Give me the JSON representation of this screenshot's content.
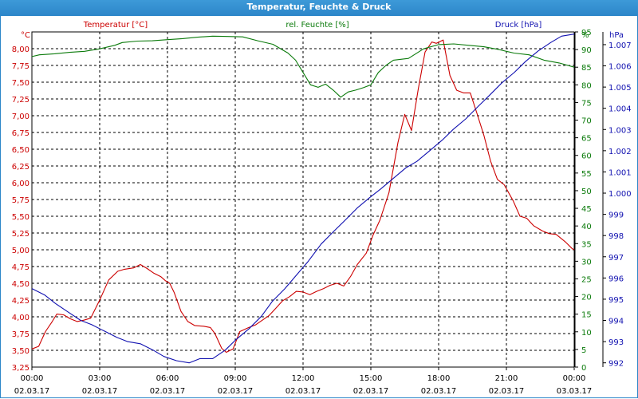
{
  "window": {
    "title": "Temperatur, Feuchte & Druck"
  },
  "colors": {
    "temperature": "#cc0000",
    "humidity": "#0a7a0a",
    "pressure": "#1010b0",
    "grid": "#000000",
    "title_bar": "#2c86c9"
  },
  "chart_data": {
    "type": "line",
    "title": "Temperatur, Feuchte & Druck",
    "grid": true,
    "x": [
      "00:00",
      "03:00",
      "06:00",
      "09:00",
      "12:00",
      "15:00",
      "18:00",
      "21:00",
      "00:00"
    ],
    "x_dates": [
      "02.03.17",
      "02.03.17",
      "02.03.17",
      "02.03.17",
      "02.03.17",
      "02.03.17",
      "02.03.17",
      "02.03.17",
      "03.03.17"
    ],
    "x_hours_range": [
      0,
      24
    ],
    "axes": {
      "left": {
        "unit": "°C",
        "label": "Temperatur [°C]",
        "range": [
          3.25,
          8.25
        ],
        "ticks": [
          "3,25",
          "3,50",
          "3,75",
          "4,00",
          "4,25",
          "4,50",
          "4,75",
          "5,00",
          "5,25",
          "5,50",
          "5,75",
          "6,00",
          "6,25",
          "6,50",
          "6,75",
          "7,00",
          "7,25",
          "7,50",
          "7,75",
          "8,00"
        ]
      },
      "middle": {
        "unit": "%",
        "label": "rel. Feuchte [%]",
        "range": [
          0,
          95
        ],
        "ticks": [
          "0",
          "5",
          "10",
          "15",
          "20",
          "25",
          "30",
          "35",
          "40",
          "45",
          "50",
          "55",
          "60",
          "65",
          "70",
          "75",
          "80",
          "85",
          "90",
          "95",
          "%"
        ]
      },
      "right": {
        "unit": "hPa",
        "label": "Druck [hPa]",
        "range": [
          991.8,
          1007.6
        ],
        "ticks": [
          "992",
          "993",
          "994",
          "995",
          "996",
          "997",
          "998",
          "999",
          "1.000",
          "1.001",
          "1.002",
          "1.003",
          "1.004",
          "1.005",
          "1.006",
          "1.007"
        ]
      }
    },
    "series": [
      {
        "name": "Temperatur [°C]",
        "axis": "left",
        "points": [
          [
            0,
            3.52
          ],
          [
            0.3,
            3.56
          ],
          [
            0.6,
            3.78
          ],
          [
            0.9,
            3.93
          ],
          [
            1.1,
            4.04
          ],
          [
            1.4,
            4.03
          ],
          [
            1.7,
            3.97
          ],
          [
            2.0,
            3.93
          ],
          [
            2.3,
            3.95
          ],
          [
            2.6,
            3.98
          ],
          [
            3.0,
            4.25
          ],
          [
            3.4,
            4.55
          ],
          [
            3.8,
            4.68
          ],
          [
            4.1,
            4.71
          ],
          [
            4.5,
            4.73
          ],
          [
            4.8,
            4.78
          ],
          [
            5.1,
            4.72
          ],
          [
            5.4,
            4.65
          ],
          [
            5.7,
            4.6
          ],
          [
            5.9,
            4.54
          ],
          [
            6.1,
            4.5
          ],
          [
            6.3,
            4.36
          ],
          [
            6.6,
            4.08
          ],
          [
            6.9,
            3.93
          ],
          [
            7.2,
            3.87
          ],
          [
            7.6,
            3.86
          ],
          [
            7.9,
            3.84
          ],
          [
            8.1,
            3.75
          ],
          [
            8.4,
            3.53
          ],
          [
            8.6,
            3.47
          ],
          [
            8.9,
            3.52
          ],
          [
            9.2,
            3.78
          ],
          [
            9.6,
            3.84
          ],
          [
            9.9,
            3.88
          ],
          [
            10.2,
            3.95
          ],
          [
            10.5,
            4.02
          ],
          [
            10.8,
            4.13
          ],
          [
            11.1,
            4.24
          ],
          [
            11.4,
            4.3
          ],
          [
            11.7,
            4.38
          ],
          [
            12.0,
            4.37
          ],
          [
            12.3,
            4.33
          ],
          [
            12.6,
            4.38
          ],
          [
            12.9,
            4.42
          ],
          [
            13.2,
            4.47
          ],
          [
            13.5,
            4.5
          ],
          [
            13.8,
            4.46
          ],
          [
            14.1,
            4.6
          ],
          [
            14.4,
            4.78
          ],
          [
            14.8,
            4.95
          ],
          [
            15.1,
            5.22
          ],
          [
            15.4,
            5.44
          ],
          [
            15.8,
            5.85
          ],
          [
            16.2,
            6.6
          ],
          [
            16.5,
            7.02
          ],
          [
            16.8,
            6.78
          ],
          [
            17.1,
            7.4
          ],
          [
            17.4,
            7.95
          ],
          [
            17.7,
            8.1
          ],
          [
            17.9,
            8.08
          ],
          [
            18.2,
            8.13
          ],
          [
            18.5,
            7.6
          ],
          [
            18.8,
            7.38
          ],
          [
            19.1,
            7.34
          ],
          [
            19.4,
            7.34
          ],
          [
            19.7,
            7.03
          ],
          [
            20.0,
            6.71
          ],
          [
            20.3,
            6.32
          ],
          [
            20.6,
            6.05
          ],
          [
            20.9,
            5.97
          ],
          [
            21.3,
            5.73
          ],
          [
            21.6,
            5.5
          ],
          [
            21.9,
            5.47
          ],
          [
            22.2,
            5.36
          ],
          [
            22.6,
            5.28
          ],
          [
            22.9,
            5.24
          ],
          [
            23.2,
            5.23
          ],
          [
            23.6,
            5.12
          ],
          [
            23.9,
            5.02
          ],
          [
            24.0,
            5.0
          ]
        ]
      },
      {
        "name": "rel. Feuchte [%]",
        "axis": "middle",
        "points": [
          [
            0,
            88.0
          ],
          [
            0.5,
            88.5
          ],
          [
            1.5,
            88.8
          ],
          [
            2.5,
            89.2
          ],
          [
            3.5,
            89.5
          ],
          [
            4.5,
            90.2
          ],
          [
            5.5,
            91.2
          ],
          [
            6.0,
            92.0
          ],
          [
            7.0,
            92.4
          ],
          [
            8.0,
            92.5
          ],
          [
            9.0,
            92.8
          ],
          [
            10.0,
            93.1
          ],
          [
            11.0,
            93.5
          ],
          [
            12.0,
            93.8
          ],
          [
            13.0,
            93.7
          ],
          [
            14.0,
            93.6
          ],
          [
            15.0,
            92.5
          ],
          [
            16.0,
            91.5
          ],
          [
            17.0,
            89.0
          ],
          [
            17.5,
            87.0
          ],
          [
            18.0,
            83.5
          ],
          [
            18.5,
            80.0
          ],
          [
            19.0,
            79.3
          ],
          [
            19.5,
            80.2
          ],
          [
            20.0,
            78.5
          ],
          [
            20.5,
            76.5
          ],
          [
            21.0,
            78.0
          ],
          [
            21.5,
            78.5
          ],
          [
            22.0,
            79.2
          ],
          [
            22.5,
            80.0
          ],
          [
            23.0,
            83.5
          ],
          [
            23.5,
            85.5
          ],
          [
            24.0,
            87.0
          ],
          [
            25.0,
            87.5
          ],
          [
            26.0,
            90.2
          ],
          [
            27.0,
            91.4
          ],
          [
            28.0,
            91.6
          ],
          [
            29.0,
            91.2
          ],
          [
            30.0,
            90.8
          ],
          [
            31.0,
            90.0
          ],
          [
            32.0,
            89.0
          ],
          [
            33.0,
            88.5
          ],
          [
            34.0,
            87.0
          ],
          [
            35.0,
            86.2
          ],
          [
            36.0,
            85.0
          ]
        ]
      },
      {
        "name": "Druck [hPa]",
        "axis": "right",
        "points": [
          [
            0,
            995.5
          ],
          [
            0.7,
            995.2
          ],
          [
            1.3,
            994.8
          ],
          [
            2.0,
            994.4
          ],
          [
            2.7,
            994.0
          ],
          [
            3.3,
            993.8
          ],
          [
            4.0,
            993.5
          ],
          [
            4.7,
            993.2
          ],
          [
            5.3,
            993.0
          ],
          [
            6.0,
            992.9
          ],
          [
            6.7,
            992.6
          ],
          [
            7.3,
            992.3
          ],
          [
            8.0,
            992.1
          ],
          [
            8.7,
            992.0
          ],
          [
            9.3,
            992.2
          ],
          [
            10.0,
            992.2
          ],
          [
            10.7,
            992.6
          ],
          [
            11.3,
            993.1
          ],
          [
            12.0,
            993.6
          ],
          [
            12.7,
            994.2
          ],
          [
            13.3,
            994.9
          ],
          [
            14.0,
            995.5
          ],
          [
            14.7,
            996.2
          ],
          [
            15.3,
            996.8
          ],
          [
            16.0,
            997.6
          ],
          [
            16.7,
            998.2
          ],
          [
            17.3,
            998.7
          ],
          [
            18.0,
            999.3
          ],
          [
            18.7,
            999.8
          ],
          [
            19.3,
            1000.2
          ],
          [
            20.0,
            1000.7
          ],
          [
            20.7,
            1001.2
          ],
          [
            21.3,
            1001.5
          ],
          [
            22.0,
            1002.0
          ],
          [
            22.7,
            1002.5
          ],
          [
            23.3,
            1003.0
          ],
          [
            24.0,
            1003.5
          ],
          [
            24.7,
            1004.1
          ],
          [
            25.3,
            1004.6
          ],
          [
            26.0,
            1005.2
          ],
          [
            26.7,
            1005.7
          ],
          [
            27.3,
            1006.2
          ],
          [
            28.0,
            1006.7
          ],
          [
            28.7,
            1007.1
          ],
          [
            29.3,
            1007.4
          ],
          [
            30.0,
            1007.5
          ]
        ]
      }
    ]
  }
}
